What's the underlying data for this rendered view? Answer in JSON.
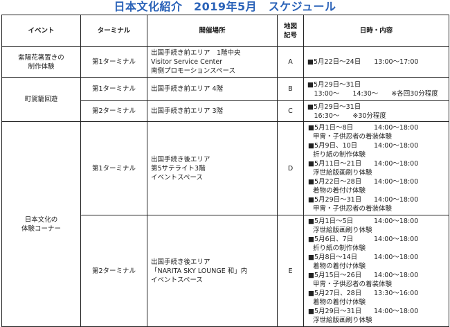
{
  "title": "日本文化紹介　2019年5月　スケジュール",
  "headers": [
    "イベント",
    "ターミナル",
    "開催場所",
    "地図\n記号",
    "日時・内容"
  ],
  "rows": {
    "a": {
      "event": "紫陽花箸置きの\n制作体験",
      "terminal": "第1ターミナル",
      "place": "出国手続き前エリア　1階中央\nVisitor Service Center\n南側プロモーションスペース",
      "map": "A",
      "schedule": "■5月22日～24日　　13:00～17:00"
    },
    "b": {
      "event": "町駕籠回遊",
      "terminal": "第1ターミナル",
      "place": "出国手続き前エリア 4階",
      "map": "B",
      "schedule": "■5月29日～31日\n　13:00～　　14:30～　　※各回30分程度"
    },
    "c": {
      "terminal": "第2ターミナル",
      "place": "出国手続き前エリア 3階",
      "map": "C",
      "schedule": "■5月29日～31日\n　16:30～　　※30分程度"
    },
    "d": {
      "event": "日本文化の\n体験コーナー",
      "terminal": "第1ターミナル",
      "place": "出国手続き後エリア\n第5サテライト3階\nイベントスペース",
      "map": "D",
      "items": [
        {
          "date": "■5月1日～8日",
          "time": "14:00～18:00",
          "desc": "甲冑・子供忍者の着装体験"
        },
        {
          "date": "■5月9日、10日",
          "time": "14:00～18:00",
          "desc": "折り紙の制作体験"
        },
        {
          "date": "■5月11日～21日",
          "time": "14:00～18:00",
          "desc": "浮世絵版画刷り体験"
        },
        {
          "date": "■5月22日～28日",
          "time": "14:00～18:00",
          "desc": "着物の着付け体験"
        },
        {
          "date": "■5月29日～31日",
          "time": "14:00～18:00",
          "desc": "甲冑・子供忍者の着装体験"
        }
      ]
    },
    "e": {
      "terminal": "第2ターミナル",
      "place": "出国手続き後エリア\n「NARITA SKY LOUNGE 和」内\nイベントスペース",
      "map": "E",
      "items": [
        {
          "date": "■5月1日～5日",
          "time": "14:00～18:00",
          "desc": "浮世絵版画刷り体験"
        },
        {
          "date": "■5月6日、7日",
          "time": "14:00～18:00",
          "desc": "折り紙の制作体験"
        },
        {
          "date": "■5月8日～14日",
          "time": "14:00～18:00",
          "desc": "着物の着付け体験"
        },
        {
          "date": "■5月15日～26日",
          "time": "14:00～18:00",
          "desc": "甲冑・子供忍者の着装体験"
        },
        {
          "date": "■5月27日、28日",
          "time": "13:30～16:00",
          "desc": "着物の着付け体験"
        },
        {
          "date": "■5月29日～31日",
          "time": "14:00～18:00",
          "desc": "浮世絵版画刷り体験"
        }
      ]
    }
  }
}
